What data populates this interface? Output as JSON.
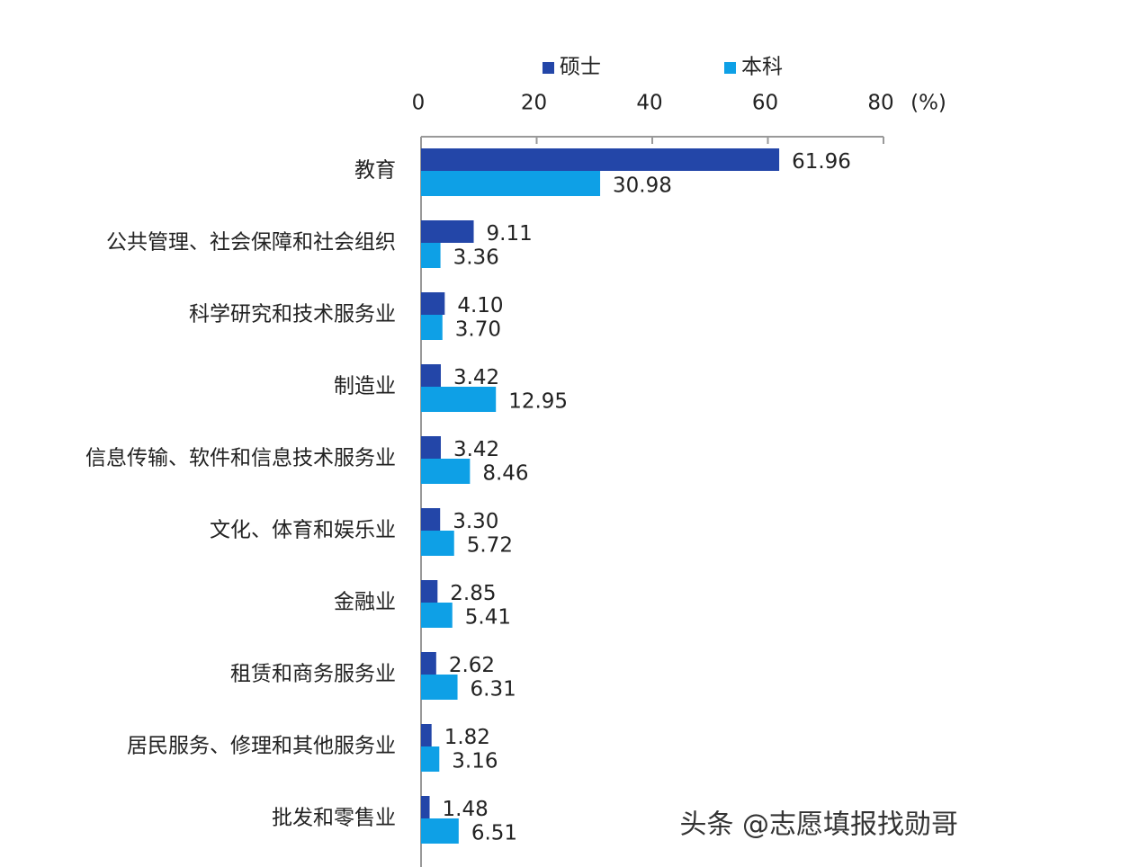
{
  "chart_data": {
    "type": "bar",
    "orientation": "horizontal",
    "xlabel": "(%)",
    "watermark": "头条 @志愿填报找勋哥",
    "categories": [
      "教育",
      "公共管理、社会保障和社会组织",
      "科学研究和技术服务业",
      "制造业",
      "信息传输、软件和信息技术服务业",
      "文化、体育和娱乐业",
      "金融业",
      "租赁和商务服务业",
      "居民服务、修理和其他服务业",
      "批发和零售业"
    ],
    "series": [
      {
        "name": "硕士",
        "color": "#2346a8",
        "values": [
          61.96,
          9.11,
          4.1,
          3.42,
          3.42,
          3.3,
          2.85,
          2.62,
          1.82,
          1.48
        ],
        "value_labels": [
          "61.96",
          "9.11",
          "4.10",
          "3.42",
          "3.42",
          "3.30",
          "2.85",
          "2.62",
          "1.82",
          "1.48"
        ]
      },
      {
        "name": "本科",
        "color": "#0ea0e6",
        "values": [
          30.98,
          3.36,
          3.7,
          12.95,
          8.46,
          5.72,
          5.41,
          6.31,
          3.16,
          6.51
        ],
        "value_labels": [
          "30.98",
          "3.36",
          "3.70",
          "12.95",
          "8.46",
          "5.72",
          "5.41",
          "6.31",
          "3.16",
          "6.51"
        ]
      }
    ],
    "xlim": [
      0,
      80
    ],
    "xticks": [
      0,
      20,
      40,
      60,
      80
    ]
  }
}
